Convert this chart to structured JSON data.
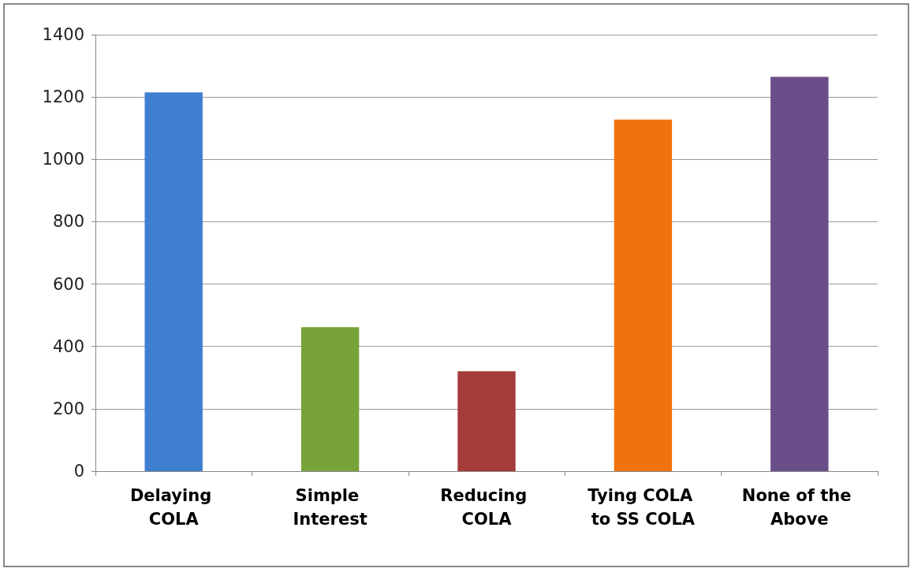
{
  "chart_data": {
    "type": "bar",
    "categories": [
      "Delaying COLA",
      "Simple Interest",
      "Reducing COLA",
      "Tying COLA to SS COLA",
      "None of the Above"
    ],
    "values": [
      1215,
      462,
      320,
      1128,
      1265
    ],
    "colors": [
      "#3f7fcf",
      "#78a23a",
      "#a33c3a",
      "#f0720f",
      "#6a4e8a"
    ],
    "ylim": [
      0,
      1400
    ],
    "yticks": [
      0,
      200,
      400,
      600,
      800,
      1000,
      1200,
      1400
    ],
    "grid": "y"
  }
}
